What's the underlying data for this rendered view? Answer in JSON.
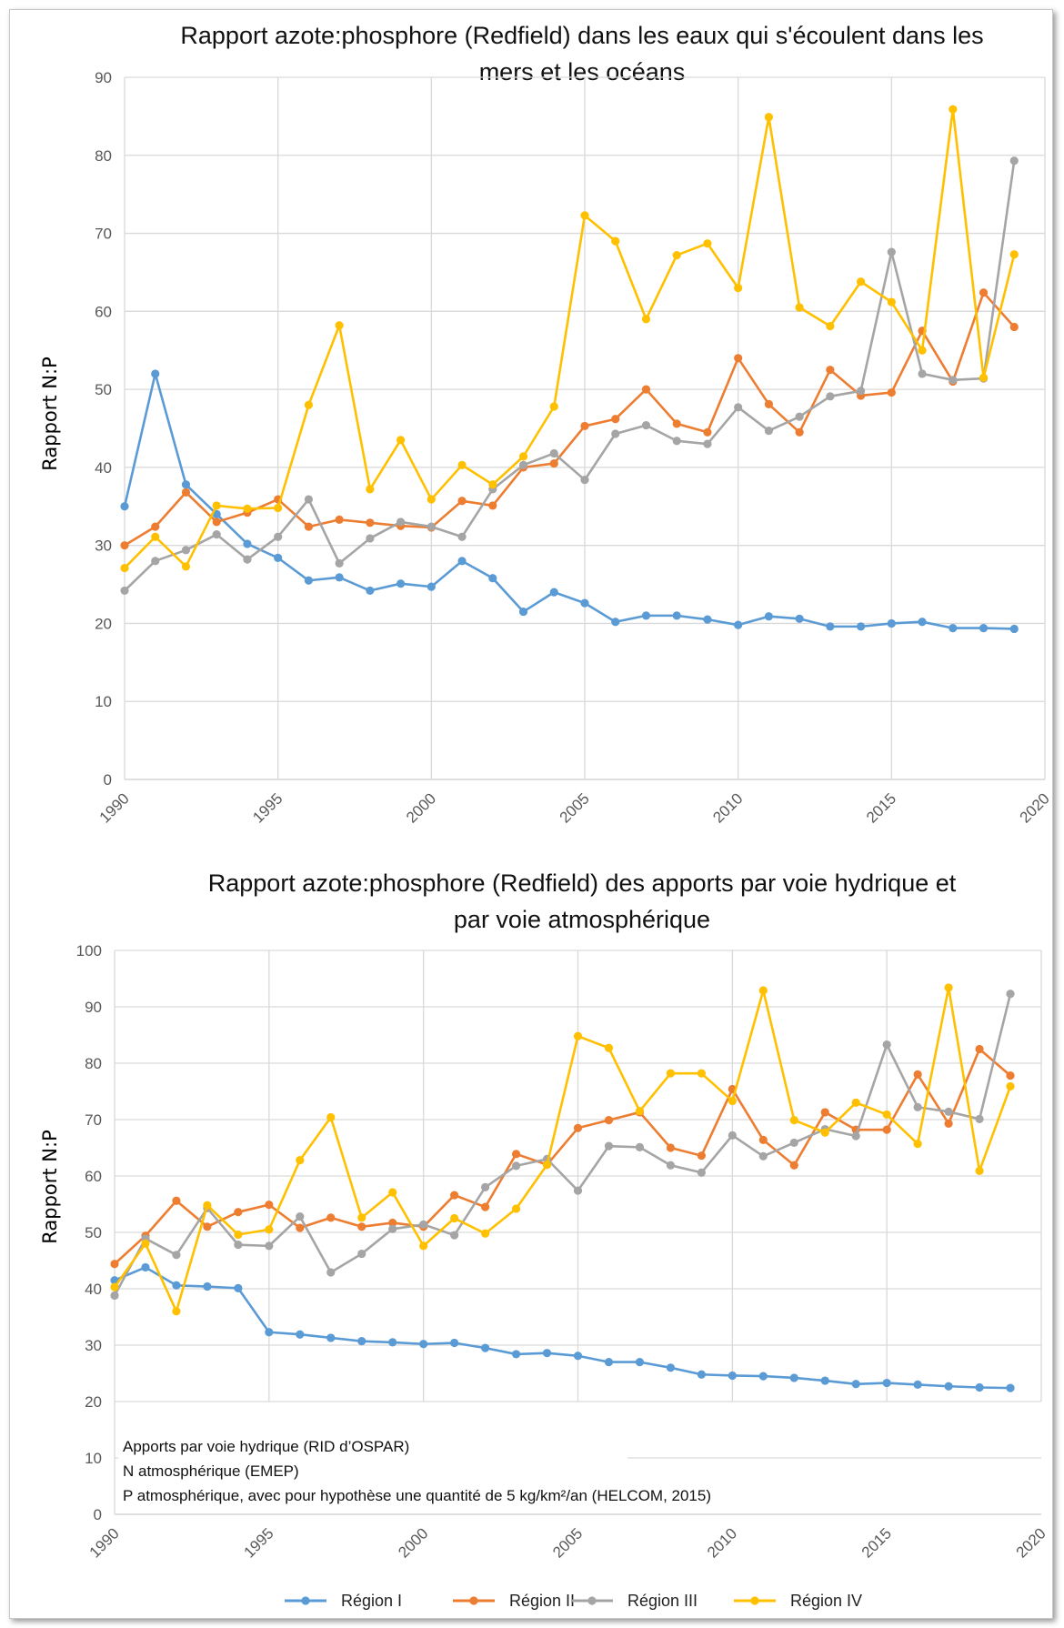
{
  "colors": {
    "Région I": "#5b9bd5",
    "Région II": "#ed7d31",
    "Région III": "#a5a5a5",
    "Région IV": "#ffc000"
  },
  "legend": [
    "Région I",
    "Région II",
    "Région III",
    "Région IV"
  ],
  "chart_data": [
    {
      "type": "line",
      "title_lines": [
        "Rapport azote:phosphore (Redfield) dans les eaux qui s'écoulent dans les",
        "mers et les océans"
      ],
      "ylabel": "Rapport N:P",
      "xlim": [
        1990,
        2020
      ],
      "ylim": [
        0,
        90
      ],
      "xticks": [
        1990,
        1995,
        2000,
        2005,
        2010,
        2015,
        2020
      ],
      "yticks": [
        0,
        10,
        20,
        30,
        40,
        50,
        60,
        70,
        80,
        90
      ],
      "grid": true,
      "x": [
        1990,
        1991,
        1992,
        1993,
        1994,
        1995,
        1996,
        1997,
        1998,
        1999,
        2000,
        2001,
        2002,
        2003,
        2004,
        2005,
        2006,
        2007,
        2008,
        2009,
        2010,
        2011,
        2012,
        2013,
        2014,
        2015,
        2016,
        2017,
        2018,
        2019
      ],
      "series": [
        {
          "name": "Région I",
          "values": [
            35,
            52,
            37.8,
            34,
            30.2,
            28.4,
            25.5,
            25.9,
            24.2,
            25.1,
            24.7,
            28,
            25.8,
            21.5,
            24,
            22.6,
            20.2,
            21,
            21,
            20.5,
            19.8,
            20.9,
            20.6,
            19.6,
            19.6,
            20,
            20.2,
            19.4,
            19.4,
            19.3
          ]
        },
        {
          "name": "Région II",
          "values": [
            30,
            32.4,
            36.8,
            33,
            34.2,
            35.9,
            32.4,
            33.3,
            32.9,
            32.5,
            32.3,
            35.7,
            35.1,
            40,
            40.5,
            45.3,
            46.2,
            50,
            45.6,
            44.5,
            54,
            48.1,
            44.5,
            52.5,
            49.2,
            49.6,
            57.5,
            51,
            62.4,
            58
          ]
        },
        {
          "name": "Région III",
          "values": [
            24.2,
            28,
            29.4,
            31.4,
            28.2,
            31.1,
            35.9,
            27.7,
            30.9,
            33,
            32.4,
            31.1,
            37.2,
            40.3,
            41.8,
            38.4,
            44.3,
            45.4,
            43.4,
            43,
            47.7,
            44.7,
            46.5,
            49.1,
            49.8,
            67.6,
            52,
            51.2,
            51.4,
            79.3
          ]
        },
        {
          "name": "Région IV",
          "values": [
            27.1,
            31.1,
            27.3,
            35.1,
            34.7,
            34.8,
            48,
            58.2,
            37.2,
            43.5,
            35.9,
            40.3,
            37.8,
            41.4,
            47.8,
            72.3,
            69,
            59,
            67.2,
            68.7,
            63,
            84.9,
            60.5,
            58.1,
            63.8,
            61.2,
            55,
            85.9,
            51.5,
            67.3
          ]
        }
      ]
    },
    {
      "type": "line",
      "title_lines": [
        "Rapport azote:phosphore (Redfield) des apports par voie hydrique et",
        "par voie atmosphérique"
      ],
      "ylabel": "Rapport N:P",
      "xlim": [
        1990,
        2020
      ],
      "ylim": [
        0,
        100
      ],
      "xticks": [
        1990,
        1995,
        2000,
        2005,
        2010,
        2015,
        2020
      ],
      "yticks": [
        0,
        10,
        20,
        30,
        40,
        50,
        60,
        70,
        80,
        90,
        100
      ],
      "grid": true,
      "notes": [
        "Apports par voie hydrique (RID d’OSPAR)",
        "N atmosphérique (EMEP)",
        "P atmosphérique, avec pour hypothèse une quantité de 5 kg/km²/an (HELCOM, 2015)"
      ],
      "legend_position": "bottom",
      "x": [
        1990,
        1991,
        1992,
        1993,
        1994,
        1995,
        1996,
        1997,
        1998,
        1999,
        2000,
        2001,
        2002,
        2003,
        2004,
        2005,
        2006,
        2007,
        2008,
        2009,
        2010,
        2011,
        2012,
        2013,
        2014,
        2015,
        2016,
        2017,
        2018,
        2019
      ],
      "series": [
        {
          "name": "Région I",
          "values": [
            41.5,
            43.8,
            40.6,
            40.4,
            40.1,
            32.3,
            31.9,
            31.3,
            30.7,
            30.5,
            30.2,
            30.4,
            29.5,
            28.4,
            28.6,
            28.1,
            27,
            27,
            26,
            24.8,
            24.6,
            24.5,
            24.2,
            23.7,
            23.1,
            23.3,
            23,
            22.7,
            22.5,
            22.4
          ]
        },
        {
          "name": "Région II",
          "values": [
            44.4,
            49.4,
            55.6,
            51,
            53.6,
            54.9,
            50.8,
            52.6,
            51,
            51.7,
            51,
            56.6,
            54.5,
            63.9,
            62,
            68.5,
            69.9,
            71.3,
            65,
            63.6,
            75.4,
            66.4,
            61.9,
            71.3,
            68.2,
            68.2,
            78,
            69.3,
            82.5,
            77.8
          ]
        },
        {
          "name": "Région III",
          "values": [
            38.8,
            48.9,
            46,
            54.3,
            47.8,
            47.6,
            52.8,
            42.9,
            46.2,
            50.6,
            51.4,
            49.5,
            58,
            61.8,
            63,
            57.4,
            65.3,
            65.1,
            61.9,
            60.6,
            67.2,
            63.5,
            65.9,
            68.3,
            67.1,
            83.3,
            72.2,
            71.4,
            70.1,
            92.3
          ]
        },
        {
          "name": "Région IV",
          "values": [
            40.3,
            48,
            36,
            54.8,
            49.6,
            50.5,
            62.8,
            70.4,
            52.6,
            57.1,
            47.6,
            52.5,
            49.8,
            54.2,
            62,
            84.8,
            82.7,
            71.5,
            78.2,
            78.2,
            73.3,
            92.9,
            69.9,
            67.7,
            73,
            70.9,
            65.7,
            93.4,
            60.9,
            75.9
          ]
        }
      ]
    }
  ]
}
